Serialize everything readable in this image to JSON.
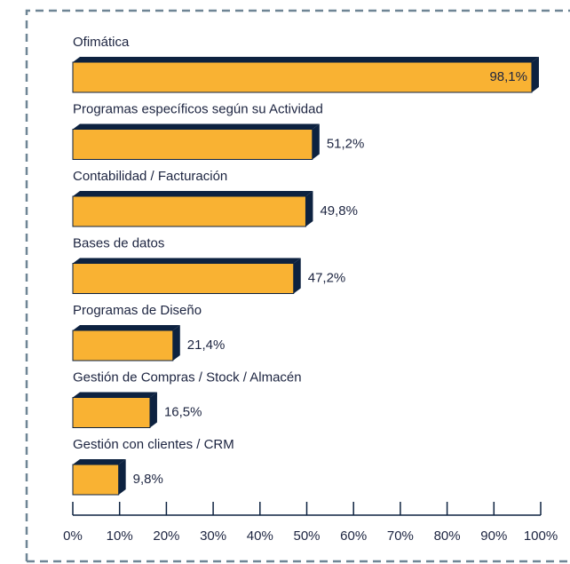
{
  "chart_data": {
    "type": "bar",
    "orientation": "horizontal",
    "categories": [
      "Ofimática",
      "Programas específicos según su Actividad",
      "Contabilidad / Facturación",
      "Bases de datos",
      "Programas de Diseño",
      "Gestión de Compras / Stock / Almacén",
      "Gestión con clientes / CRM"
    ],
    "values": [
      98.1,
      51.2,
      49.8,
      47.2,
      21.4,
      16.5,
      9.8
    ],
    "value_labels": [
      "98,1%",
      "51,2%",
      "49,8%",
      "47,2%",
      "21,4%",
      "16,5%",
      "9,8%"
    ],
    "color": "#f9b233",
    "edge_color": "#0d2240",
    "xlim": [
      0,
      100
    ],
    "xticks": [
      {
        "value": 0,
        "label": "0%"
      },
      {
        "value": 10,
        "label": "10%"
      },
      {
        "value": 20,
        "label": "20%"
      },
      {
        "value": 30,
        "label": "30%"
      },
      {
        "value": 40,
        "label": "40%"
      },
      {
        "value": 50,
        "label": "50%"
      },
      {
        "value": 60,
        "label": "60%"
      },
      {
        "value": 70,
        "label": "70%"
      },
      {
        "value": 80,
        "label": "80%"
      },
      {
        "value": 90,
        "label": "90%"
      },
      {
        "value": 100,
        "label": "100%"
      }
    ]
  }
}
